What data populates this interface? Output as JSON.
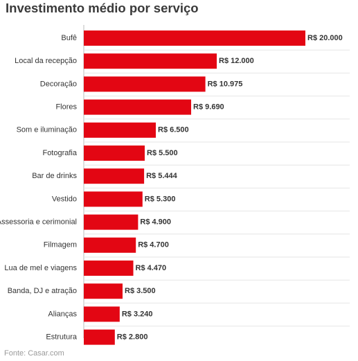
{
  "chart_data": {
    "type": "bar",
    "orientation": "horizontal",
    "title": "Investimento médio por serviço",
    "categories": [
      "Bufê",
      "Local da recepção",
      "Decoração",
      "Flores",
      "Som e iluminação",
      "Fotografia",
      "Bar de drinks",
      "Vestido",
      "Assessoria e cerimonial",
      "Filmagem",
      "Lua de mel e viagens",
      "Banda, DJ e atração",
      "Alianças",
      "Estrutura"
    ],
    "values": [
      20000,
      12000,
      10975,
      9690,
      6500,
      5500,
      5444,
      5300,
      4900,
      4700,
      4470,
      3500,
      3240,
      2800
    ],
    "value_labels": [
      "R$ 20.000",
      "R$ 12.000",
      "R$ 10.975",
      "R$ 9.690",
      "R$ 6.500",
      "R$ 5.500",
      "R$ 5.444",
      "R$ 5.300",
      "R$ 4.900",
      "R$ 4.700",
      "R$ 4.470",
      "R$ 3.500",
      "R$ 3.240",
      "R$ 2.800"
    ],
    "xlim": [
      0,
      20000
    ],
    "bar_color": "#e30613",
    "grid": true,
    "source": "Fonte: Casar.com"
  }
}
